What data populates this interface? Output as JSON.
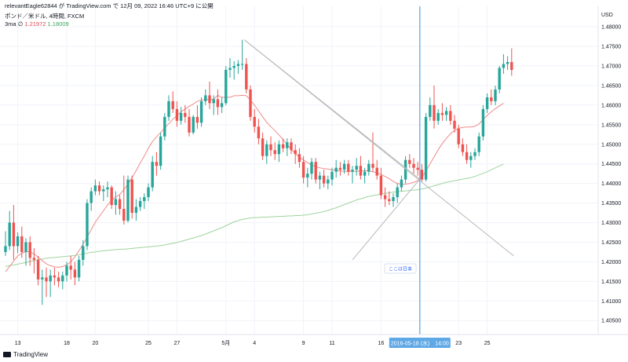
{
  "header": {
    "publish_line": "relevantEagle62844 が TradingView.com で 12月 09, 2022 16:46 UTC+9 に公開",
    "symbol_line": "ポンド／米ドル, 4時間, FXCM",
    "indicator_label": "3ma",
    "indicator_symbol": "∅",
    "ma_values": [
      "1.21972",
      "1.18009"
    ]
  },
  "footer": {
    "brand": "TradingView"
  },
  "colors": {
    "up": "#26a69a",
    "down": "#ef5350",
    "ma_fast": "#f08a8a",
    "ma_slow": "#9fd49f",
    "cursor": "#5fa8e6",
    "trendline": "#b8b8b8",
    "grid": "#f0f3fa"
  },
  "chart_data": {
    "type": "candlestick",
    "title": "ポンド／米ドル, 4時間, FXCM",
    "currency_label": "USD",
    "y_ticks": [
      "1.48000",
      "1.47500",
      "1.47000",
      "1.46500",
      "1.46000",
      "1.45500",
      "1.45000",
      "1.44500",
      "1.44000",
      "1.43500",
      "1.43000",
      "1.42500",
      "1.42000",
      "1.41500",
      "1.41000",
      "1.40500"
    ],
    "ylim": [
      1.40143,
      1.48524
    ],
    "x_tick_labels": [
      {
        "label": "13",
        "i": 3
      },
      {
        "label": "18",
        "i": 15
      },
      {
        "label": "20",
        "i": 22
      },
      {
        "label": "25",
        "i": 35
      },
      {
        "label": "27",
        "i": 42
      },
      {
        "label": "5月",
        "i": 54
      },
      {
        "label": "4",
        "i": 61
      },
      {
        "label": "9",
        "i": 73
      },
      {
        "label": "11",
        "i": 80
      },
      {
        "label": "16",
        "i": 92
      },
      {
        "label": "23",
        "i": 111
      },
      {
        "label": "25",
        "i": 118
      }
    ],
    "cursor": {
      "label": "2016-05-18 (水)　14:00",
      "i": 101.5,
      "price": 1.4411
    },
    "annotation": {
      "label": "ここは日本",
      "i": 84,
      "price": 1.4199
    },
    "trend_lines": [
      {
        "from": {
          "i": 58.5,
          "price": 1.4767
        },
        "to": {
          "i": 124.5,
          "price": 1.4215
        }
      },
      {
        "from": {
          "i": 85,
          "price": 1.4205
        },
        "to": {
          "i": 101.5,
          "price": 1.4411
        }
      },
      {
        "from": {
          "i": 58.5,
          "price": 1.4767
        },
        "to": {
          "i": 101.5,
          "price": 1.4411
        }
      }
    ],
    "ma_fast": [
      1.4175,
      1.4188,
      1.4202,
      1.4215,
      1.4222,
      1.4226,
      1.4225,
      1.422,
      1.4212,
      1.4203,
      1.4195,
      1.419,
      1.4187,
      1.4186,
      1.4188,
      1.4192,
      1.42,
      1.4213,
      1.4228,
      1.4245,
      1.4263,
      1.4282,
      1.4301,
      1.4316,
      1.433,
      1.4345,
      1.4357,
      1.4365,
      1.4372,
      1.4384,
      1.4398,
      1.4415,
      1.4433,
      1.4452,
      1.447,
      1.449,
      1.4507,
      1.4519,
      1.453,
      1.4542,
      1.4553,
      1.4564,
      1.4573,
      1.4583,
      1.459,
      1.4597,
      1.4603,
      1.461,
      1.4613,
      1.4614,
      1.4615,
      1.4615,
      1.4625,
      1.462,
      1.462,
      1.462,
      1.4624,
      1.4624,
      1.4625,
      1.4624,
      1.4613,
      1.46,
      1.4585,
      1.457,
      1.4556,
      1.4545,
      1.4535,
      1.4524,
      1.4512,
      1.45,
      1.4487,
      1.4476,
      1.4467,
      1.446,
      1.4453,
      1.4447,
      1.4443,
      1.444,
      1.4438,
      1.4437,
      1.4435,
      1.4434,
      1.4432,
      1.4431,
      1.4431,
      1.4431,
      1.4431,
      1.4432,
      1.4433,
      1.4432,
      1.443,
      1.4427,
      1.4423,
      1.4418,
      1.4412,
      1.4405,
      1.44,
      1.4398,
      1.4398,
      1.44,
      1.4403,
      1.4407,
      1.4415,
      1.4432,
      1.445,
      1.4468,
      1.4486,
      1.4502,
      1.4515,
      1.4527,
      1.4535,
      1.4541,
      1.4543,
      1.4544,
      1.4544,
      1.4546,
      1.4552,
      1.4563,
      1.4574,
      1.4583,
      1.4591,
      1.4598,
      1.4605
    ],
    "ma_slow": [
      1.4188,
      1.419,
      1.4192,
      1.4194,
      1.4196,
      1.4198,
      1.4201,
      1.4203,
      1.4205,
      1.4207,
      1.4209,
      1.421,
      1.4211,
      1.4212,
      1.4213,
      1.4214,
      1.4215,
      1.4216,
      1.4218,
      1.422,
      1.4222,
      1.4224,
      1.4225,
      1.4227,
      1.4228,
      1.4229,
      1.423,
      1.4231,
      1.4232,
      1.4232,
      1.4233,
      1.4234,
      1.4235,
      1.4236,
      1.4237,
      1.4238,
      1.4239,
      1.424,
      1.4241,
      1.4243,
      1.4245,
      1.4247,
      1.4249,
      1.4252,
      1.4255,
      1.4258,
      1.4261,
      1.4264,
      1.4267,
      1.4271,
      1.4275,
      1.4279,
      1.4283,
      1.4287,
      1.4292,
      1.4297,
      1.4302,
      1.4305,
      1.4308,
      1.431,
      1.4312,
      1.4313,
      1.4313,
      1.4314,
      1.4314,
      1.4315,
      1.4315,
      1.4316,
      1.4316,
      1.4317,
      1.4317,
      1.4318,
      1.4318,
      1.4319,
      1.432,
      1.4322,
      1.4324,
      1.4326,
      1.4328,
      1.4331,
      1.4335,
      1.4338,
      1.4342,
      1.4346,
      1.435,
      1.4354,
      1.4358,
      1.4361,
      1.4364,
      1.4367,
      1.4369,
      1.4371,
      1.4373,
      1.4375,
      1.4376,
      1.4378,
      1.4379,
      1.438,
      1.4381,
      1.4382,
      1.4383,
      1.4384,
      1.4386,
      1.4388,
      1.4391,
      1.4394,
      1.4397,
      1.44,
      1.4403,
      1.4405,
      1.4407,
      1.4409,
      1.4411,
      1.4413,
      1.4415,
      1.4418,
      1.4422,
      1.4426,
      1.443,
      1.4435,
      1.444,
      1.4445,
      1.4449
    ],
    "candles": [
      {
        "o": 1.4225,
        "h": 1.4278,
        "l": 1.4215,
        "c": 1.424
      },
      {
        "o": 1.424,
        "h": 1.433,
        "l": 1.423,
        "c": 1.43
      },
      {
        "o": 1.43,
        "h": 1.4345,
        "l": 1.4205,
        "c": 1.424
      },
      {
        "o": 1.424,
        "h": 1.4275,
        "l": 1.4222,
        "c": 1.4265
      },
      {
        "o": 1.4265,
        "h": 1.429,
        "l": 1.421,
        "c": 1.4225
      },
      {
        "o": 1.4225,
        "h": 1.426,
        "l": 1.419,
        "c": 1.425
      },
      {
        "o": 1.425,
        "h": 1.4265,
        "l": 1.419,
        "c": 1.421
      },
      {
        "o": 1.421,
        "h": 1.4235,
        "l": 1.417,
        "c": 1.4205
      },
      {
        "o": 1.4205,
        "h": 1.4215,
        "l": 1.414,
        "c": 1.4155
      },
      {
        "o": 1.4155,
        "h": 1.418,
        "l": 1.409,
        "c": 1.416
      },
      {
        "o": 1.416,
        "h": 1.4185,
        "l": 1.411,
        "c": 1.415
      },
      {
        "o": 1.415,
        "h": 1.418,
        "l": 1.411,
        "c": 1.4165
      },
      {
        "o": 1.4165,
        "h": 1.4185,
        "l": 1.414,
        "c": 1.416
      },
      {
        "o": 1.416,
        "h": 1.4175,
        "l": 1.4135,
        "c": 1.415
      },
      {
        "o": 1.415,
        "h": 1.4175,
        "l": 1.413,
        "c": 1.4165
      },
      {
        "o": 1.4165,
        "h": 1.42,
        "l": 1.415,
        "c": 1.419
      },
      {
        "o": 1.419,
        "h": 1.4215,
        "l": 1.4155,
        "c": 1.418
      },
      {
        "o": 1.418,
        "h": 1.42,
        "l": 1.414,
        "c": 1.416
      },
      {
        "o": 1.416,
        "h": 1.4215,
        "l": 1.415,
        "c": 1.4205
      },
      {
        "o": 1.4205,
        "h": 1.4255,
        "l": 1.419,
        "c": 1.424
      },
      {
        "o": 1.424,
        "h": 1.436,
        "l": 1.423,
        "c": 1.435
      },
      {
        "o": 1.435,
        "h": 1.439,
        "l": 1.433,
        "c": 1.438
      },
      {
        "o": 1.438,
        "h": 1.441,
        "l": 1.437,
        "c": 1.4395
      },
      {
        "o": 1.4395,
        "h": 1.4405,
        "l": 1.437,
        "c": 1.438
      },
      {
        "o": 1.438,
        "h": 1.4395,
        "l": 1.4355,
        "c": 1.4385
      },
      {
        "o": 1.4385,
        "h": 1.4405,
        "l": 1.4365,
        "c": 1.439
      },
      {
        "o": 1.439,
        "h": 1.4395,
        "l": 1.4335,
        "c": 1.4345
      },
      {
        "o": 1.4345,
        "h": 1.438,
        "l": 1.432,
        "c": 1.436
      },
      {
        "o": 1.436,
        "h": 1.437,
        "l": 1.432,
        "c": 1.4335
      },
      {
        "o": 1.4335,
        "h": 1.442,
        "l": 1.4295,
        "c": 1.4305
      },
      {
        "o": 1.4305,
        "h": 1.442,
        "l": 1.43,
        "c": 1.441
      },
      {
        "o": 1.441,
        "h": 1.442,
        "l": 1.431,
        "c": 1.4325
      },
      {
        "o": 1.4325,
        "h": 1.436,
        "l": 1.4305,
        "c": 1.434
      },
      {
        "o": 1.434,
        "h": 1.4365,
        "l": 1.433,
        "c": 1.4355
      },
      {
        "o": 1.4355,
        "h": 1.4375,
        "l": 1.4335,
        "c": 1.4365
      },
      {
        "o": 1.4365,
        "h": 1.44,
        "l": 1.4355,
        "c": 1.439
      },
      {
        "o": 1.439,
        "h": 1.447,
        "l": 1.438,
        "c": 1.4455
      },
      {
        "o": 1.4455,
        "h": 1.448,
        "l": 1.442,
        "c": 1.4445
      },
      {
        "o": 1.4445,
        "h": 1.453,
        "l": 1.4435,
        "c": 1.452
      },
      {
        "o": 1.452,
        "h": 1.458,
        "l": 1.451,
        "c": 1.457
      },
      {
        "o": 1.457,
        "h": 1.4625,
        "l": 1.456,
        "c": 1.461
      },
      {
        "o": 1.461,
        "h": 1.4635,
        "l": 1.458,
        "c": 1.459
      },
      {
        "o": 1.459,
        "h": 1.461,
        "l": 1.4545,
        "c": 1.456
      },
      {
        "o": 1.456,
        "h": 1.4595,
        "l": 1.455,
        "c": 1.458
      },
      {
        "o": 1.458,
        "h": 1.46,
        "l": 1.4555,
        "c": 1.457
      },
      {
        "o": 1.457,
        "h": 1.459,
        "l": 1.452,
        "c": 1.453
      },
      {
        "o": 1.453,
        "h": 1.4575,
        "l": 1.4525,
        "c": 1.457
      },
      {
        "o": 1.457,
        "h": 1.46,
        "l": 1.454,
        "c": 1.4555
      },
      {
        "o": 1.4555,
        "h": 1.462,
        "l": 1.4545,
        "c": 1.461
      },
      {
        "o": 1.461,
        "h": 1.464,
        "l": 1.46,
        "c": 1.4625
      },
      {
        "o": 1.4625,
        "h": 1.466,
        "l": 1.459,
        "c": 1.4605
      },
      {
        "o": 1.4605,
        "h": 1.4625,
        "l": 1.4575,
        "c": 1.4615
      },
      {
        "o": 1.4615,
        "h": 1.464,
        "l": 1.4575,
        "c": 1.4595
      },
      {
        "o": 1.4595,
        "h": 1.462,
        "l": 1.458,
        "c": 1.4605
      },
      {
        "o": 1.4605,
        "h": 1.47,
        "l": 1.46,
        "c": 1.469
      },
      {
        "o": 1.469,
        "h": 1.472,
        "l": 1.467,
        "c": 1.4695
      },
      {
        "o": 1.4695,
        "h": 1.4712,
        "l": 1.4665,
        "c": 1.47
      },
      {
        "o": 1.47,
        "h": 1.4715,
        "l": 1.468,
        "c": 1.4705
      },
      {
        "o": 1.4705,
        "h": 1.4767,
        "l": 1.469,
        "c": 1.4705
      },
      {
        "o": 1.4705,
        "h": 1.472,
        "l": 1.463,
        "c": 1.464
      },
      {
        "o": 1.464,
        "h": 1.465,
        "l": 1.456,
        "c": 1.457
      },
      {
        "o": 1.457,
        "h": 1.459,
        "l": 1.453,
        "c": 1.4545
      },
      {
        "o": 1.4545,
        "h": 1.4565,
        "l": 1.45,
        "c": 1.4515
      },
      {
        "o": 1.4515,
        "h": 1.453,
        "l": 1.446,
        "c": 1.447
      },
      {
        "o": 1.447,
        "h": 1.451,
        "l": 1.445,
        "c": 1.45
      },
      {
        "o": 1.45,
        "h": 1.452,
        "l": 1.447,
        "c": 1.4485
      },
      {
        "o": 1.4485,
        "h": 1.4505,
        "l": 1.446,
        "c": 1.4475
      },
      {
        "o": 1.4475,
        "h": 1.451,
        "l": 1.4455,
        "c": 1.45
      },
      {
        "o": 1.45,
        "h": 1.4515,
        "l": 1.448,
        "c": 1.449
      },
      {
        "o": 1.449,
        "h": 1.4515,
        "l": 1.447,
        "c": 1.4505
      },
      {
        "o": 1.4505,
        "h": 1.4515,
        "l": 1.4475,
        "c": 1.4485
      },
      {
        "o": 1.4485,
        "h": 1.45,
        "l": 1.445,
        "c": 1.4475
      },
      {
        "o": 1.4475,
        "h": 1.449,
        "l": 1.444,
        "c": 1.4455
      },
      {
        "o": 1.4455,
        "h": 1.447,
        "l": 1.44,
        "c": 1.4415
      },
      {
        "o": 1.4415,
        "h": 1.444,
        "l": 1.439,
        "c": 1.4425
      },
      {
        "o": 1.4425,
        "h": 1.4465,
        "l": 1.441,
        "c": 1.4455
      },
      {
        "o": 1.4455,
        "h": 1.4465,
        "l": 1.44,
        "c": 1.441
      },
      {
        "o": 1.441,
        "h": 1.443,
        "l": 1.4385,
        "c": 1.442
      },
      {
        "o": 1.442,
        "h": 1.4435,
        "l": 1.439,
        "c": 1.44
      },
      {
        "o": 1.44,
        "h": 1.442,
        "l": 1.4385,
        "c": 1.441
      },
      {
        "o": 1.441,
        "h": 1.444,
        "l": 1.4395,
        "c": 1.443
      },
      {
        "o": 1.443,
        "h": 1.446,
        "l": 1.4415,
        "c": 1.444
      },
      {
        "o": 1.444,
        "h": 1.4455,
        "l": 1.442,
        "c": 1.4435
      },
      {
        "o": 1.4435,
        "h": 1.446,
        "l": 1.4425,
        "c": 1.445
      },
      {
        "o": 1.445,
        "h": 1.446,
        "l": 1.442,
        "c": 1.443
      },
      {
        "o": 1.443,
        "h": 1.4445,
        "l": 1.44,
        "c": 1.4435
      },
      {
        "o": 1.4435,
        "h": 1.4465,
        "l": 1.442,
        "c": 1.4445
      },
      {
        "o": 1.4445,
        "h": 1.447,
        "l": 1.441,
        "c": 1.442
      },
      {
        "o": 1.442,
        "h": 1.444,
        "l": 1.44,
        "c": 1.443
      },
      {
        "o": 1.443,
        "h": 1.446,
        "l": 1.442,
        "c": 1.445
      },
      {
        "o": 1.445,
        "h": 1.453,
        "l": 1.443,
        "c": 1.444
      },
      {
        "o": 1.444,
        "h": 1.446,
        "l": 1.441,
        "c": 1.442
      },
      {
        "o": 1.442,
        "h": 1.444,
        "l": 1.436,
        "c": 1.437
      },
      {
        "o": 1.437,
        "h": 1.439,
        "l": 1.434,
        "c": 1.436
      },
      {
        "o": 1.436,
        "h": 1.438,
        "l": 1.4345,
        "c": 1.4355
      },
      {
        "o": 1.4355,
        "h": 1.4375,
        "l": 1.434,
        "c": 1.4365
      },
      {
        "o": 1.4365,
        "h": 1.44,
        "l": 1.435,
        "c": 1.439
      },
      {
        "o": 1.439,
        "h": 1.442,
        "l": 1.438,
        "c": 1.441
      },
      {
        "o": 1.441,
        "h": 1.447,
        "l": 1.44,
        "c": 1.446
      },
      {
        "o": 1.446,
        "h": 1.4475,
        "l": 1.444,
        "c": 1.445
      },
      {
        "o": 1.445,
        "h": 1.4465,
        "l": 1.4425,
        "c": 1.444
      },
      {
        "o": 1.444,
        "h": 1.4455,
        "l": 1.442,
        "c": 1.4435
      },
      {
        "o": 1.4435,
        "h": 1.445,
        "l": 1.4405,
        "c": 1.441
      },
      {
        "o": 1.441,
        "h": 1.458,
        "l": 1.4405,
        "c": 1.457
      },
      {
        "o": 1.457,
        "h": 1.462,
        "l": 1.456,
        "c": 1.46
      },
      {
        "o": 1.46,
        "h": 1.465,
        "l": 1.454,
        "c": 1.456
      },
      {
        "o": 1.456,
        "h": 1.459,
        "l": 1.455,
        "c": 1.458
      },
      {
        "o": 1.458,
        "h": 1.4605,
        "l": 1.456,
        "c": 1.4575
      },
      {
        "o": 1.4575,
        "h": 1.4595,
        "l": 1.456,
        "c": 1.4585
      },
      {
        "o": 1.4585,
        "h": 1.46,
        "l": 1.455,
        "c": 1.456
      },
      {
        "o": 1.456,
        "h": 1.4575,
        "l": 1.453,
        "c": 1.454
      },
      {
        "o": 1.454,
        "h": 1.455,
        "l": 1.449,
        "c": 1.45
      },
      {
        "o": 1.45,
        "h": 1.4515,
        "l": 1.447,
        "c": 1.448
      },
      {
        "o": 1.448,
        "h": 1.45,
        "l": 1.445,
        "c": 1.446
      },
      {
        "o": 1.446,
        "h": 1.448,
        "l": 1.444,
        "c": 1.447
      },
      {
        "o": 1.447,
        "h": 1.449,
        "l": 1.446,
        "c": 1.448
      },
      {
        "o": 1.448,
        "h": 1.453,
        "l": 1.447,
        "c": 1.452
      },
      {
        "o": 1.452,
        "h": 1.46,
        "l": 1.451,
        "c": 1.459
      },
      {
        "o": 1.459,
        "h": 1.463,
        "l": 1.458,
        "c": 1.462
      },
      {
        "o": 1.462,
        "h": 1.464,
        "l": 1.46,
        "c": 1.461
      },
      {
        "o": 1.461,
        "h": 1.465,
        "l": 1.46,
        "c": 1.464
      },
      {
        "o": 1.464,
        "h": 1.47,
        "l": 1.463,
        "c": 1.4695
      },
      {
        "o": 1.4695,
        "h": 1.473,
        "l": 1.468,
        "c": 1.4705
      },
      {
        "o": 1.4705,
        "h": 1.4725,
        "l": 1.469,
        "c": 1.471
      },
      {
        "o": 1.471,
        "h": 1.4745,
        "l": 1.4675,
        "c": 1.469
      }
    ]
  }
}
